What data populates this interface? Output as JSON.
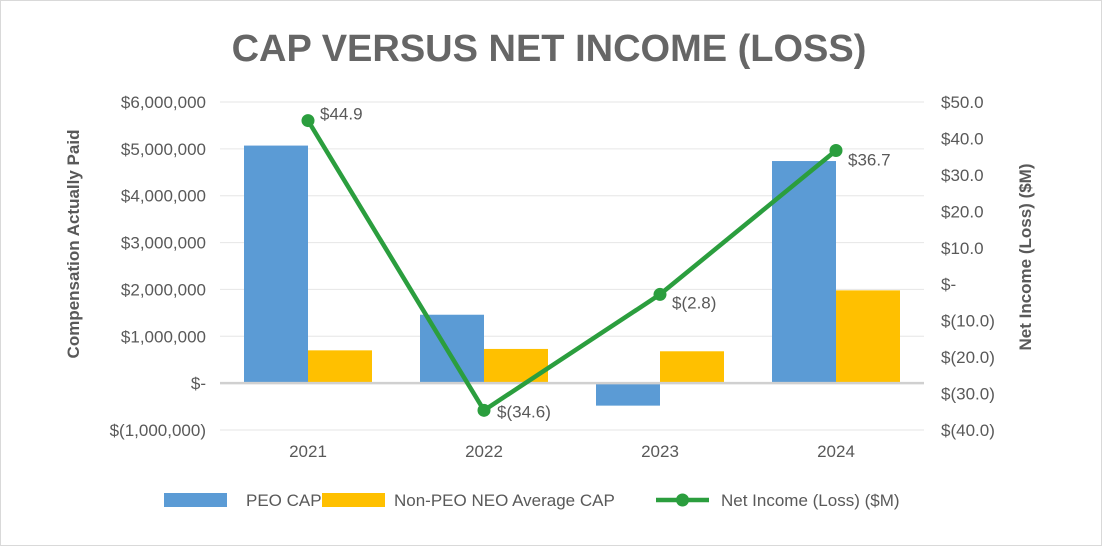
{
  "chart_data": {
    "type": "bar",
    "title": "CAP VERSUS NET INCOME (LOSS)",
    "categories": [
      "2021",
      "2022",
      "2023",
      "2024"
    ],
    "ylabel": "Compensation Actually Paid",
    "y2label": "Net Income (Loss) ($M)",
    "ylim": [
      -1000000,
      6000000
    ],
    "y2lim": [
      -40,
      50
    ],
    "y_ticks": [
      {
        "value": 6000000,
        "label": "$6,000,000"
      },
      {
        "value": 5000000,
        "label": "$5,000,000"
      },
      {
        "value": 4000000,
        "label": "$4,000,000"
      },
      {
        "value": 3000000,
        "label": "$3,000,000"
      },
      {
        "value": 2000000,
        "label": "$2,000,000"
      },
      {
        "value": 1000000,
        "label": "$1,000,000"
      },
      {
        "value": 0,
        "label": "$-"
      },
      {
        "value": -1000000,
        "label": "$(1,000,000)"
      }
    ],
    "y2_ticks": [
      {
        "value": 50,
        "label": "$50.0"
      },
      {
        "value": 40,
        "label": "$40.0"
      },
      {
        "value": 30,
        "label": "$30.0"
      },
      {
        "value": 20,
        "label": "$20.0"
      },
      {
        "value": 10,
        "label": "$10.0"
      },
      {
        "value": 0,
        "label": "$-"
      },
      {
        "value": -10,
        "label": "$(10.0)"
      },
      {
        "value": -20,
        "label": "$(20.0)"
      },
      {
        "value": -30,
        "label": "$(30.0)"
      },
      {
        "value": -40,
        "label": "$(40.0)"
      }
    ],
    "grid": true,
    "legend_position": "bottom",
    "series": [
      {
        "name": "PEO CAP",
        "type": "bar",
        "axis": "left",
        "color": "#5b9bd5",
        "values": [
          5070000,
          1460000,
          -480000,
          4740000
        ]
      },
      {
        "name": "Non-PEO NEO Average CAP",
        "type": "bar",
        "axis": "left",
        "color": "#ffc000",
        "values": [
          700000,
          730000,
          680000,
          1980000
        ]
      },
      {
        "name": "Net Income (Loss) ($M)",
        "type": "line",
        "axis": "right",
        "color": "#2b9e3e",
        "values": [
          44.9,
          -34.6,
          -2.8,
          36.7
        ],
        "labels": [
          "$44.9",
          "$(34.6)",
          "$(2.8)",
          "$36.7"
        ]
      }
    ]
  }
}
